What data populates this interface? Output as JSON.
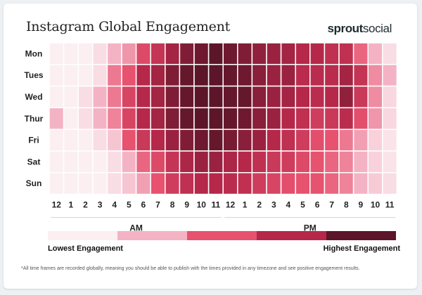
{
  "header": {
    "title": "Instagram Global Engagement",
    "brand_bold": "sprout",
    "brand_light": "social"
  },
  "colors": {
    "scale": [
      "#fbeff2",
      "#f4b3c4",
      "#e7526f",
      "#b5284a",
      "#5c1529"
    ],
    "gridline": "#ffffff"
  },
  "chart_data": {
    "type": "heatmap",
    "title": "Instagram Global Engagement",
    "rows": [
      "Mon",
      "Tues",
      "Wed",
      "Thur",
      "Fri",
      "Sat",
      "Sun"
    ],
    "columns": [
      "12",
      "1",
      "2",
      "3",
      "4",
      "5",
      "6",
      "7",
      "8",
      "9",
      "10",
      "11",
      "12",
      "1",
      "2",
      "3",
      "4",
      "5",
      "6",
      "7",
      "8",
      "9",
      "10",
      "11"
    ],
    "column_groups": [
      {
        "label": "AM",
        "from": 0,
        "to": 11
      },
      {
        "label": "PM",
        "from": 12,
        "to": 23
      }
    ],
    "scale_min": 0,
    "scale_max": 4,
    "values": [
      [
        0,
        0,
        0,
        0.3,
        1,
        1.3,
        2.2,
        2.7,
        3.2,
        3.6,
        3.8,
        4,
        3.8,
        3.6,
        3.4,
        3.3,
        3.2,
        3,
        3,
        2.8,
        2.8,
        1.8,
        1,
        0.3
      ],
      [
        0,
        0,
        0,
        0.3,
        1.6,
        2,
        3,
        3.2,
        3.6,
        3.9,
        4,
        4,
        3.9,
        3.8,
        3.5,
        3.3,
        3.3,
        2.9,
        2.9,
        2.9,
        3.2,
        2.7,
        1.4,
        1
      ],
      [
        0,
        0,
        0.3,
        1,
        1.6,
        2.3,
        3,
        3.2,
        3.6,
        3.9,
        4,
        4,
        3.9,
        3.9,
        3.5,
        3.3,
        3.2,
        3,
        2.9,
        3,
        3.4,
        2.6,
        1.4,
        0.4
      ],
      [
        1,
        0,
        0.3,
        1,
        1.5,
        2.3,
        3,
        3.2,
        3.6,
        3.9,
        4,
        4,
        3.9,
        3.8,
        3.5,
        3.3,
        3,
        2.8,
        2.5,
        2.6,
        2.9,
        2.1,
        1.3,
        0.4
      ],
      [
        0,
        0,
        0,
        0.3,
        0.7,
        2,
        2.6,
        3,
        3.3,
        3.6,
        3.8,
        3.9,
        3.7,
        3.5,
        3.3,
        3,
        2.8,
        2.5,
        2.1,
        2,
        1.6,
        1.2,
        0.5,
        0.2
      ],
      [
        0,
        0,
        0,
        0,
        0.3,
        1,
        1.8,
        2.2,
        2.7,
        3.1,
        3.3,
        3.3,
        3.1,
        3,
        2.8,
        2.6,
        2.5,
        2.2,
        2,
        1.8,
        1.5,
        1,
        0.5,
        0.2
      ],
      [
        0,
        0,
        0,
        0,
        0.3,
        0.7,
        1.2,
        2,
        2.5,
        2.8,
        3,
        3,
        2.9,
        2.8,
        2.5,
        2.3,
        2.1,
        2,
        2,
        1.8,
        1.5,
        1,
        0.6,
        0.3
      ]
    ],
    "legend": {
      "low": "Lowest Engagement",
      "high": "Highest Engagement"
    },
    "footnote": "*All time frames are recorded globally, meaning you should be able to publish with the times provided in any timezone and see positive engagement results."
  }
}
